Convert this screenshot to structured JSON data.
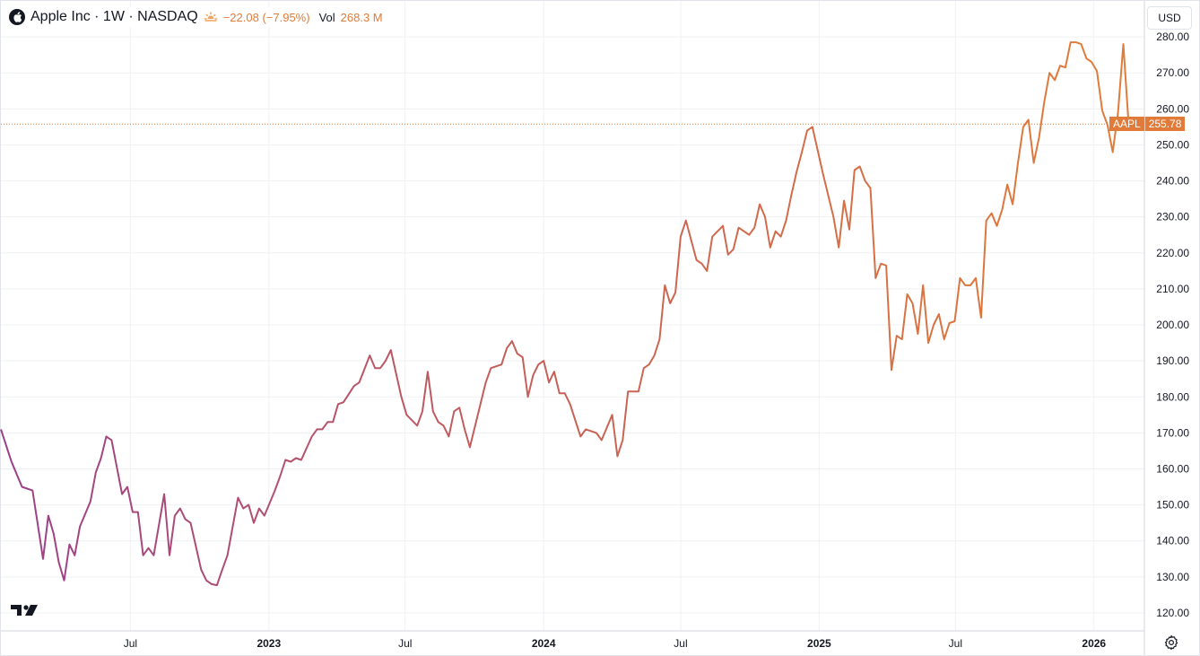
{
  "legend": {
    "title": "Apple Inc · 1W · NASDAQ",
    "change": "−22.08 (−7.95%)",
    "vol_label": "Vol",
    "vol_value": "268.3 M"
  },
  "currency": "USD",
  "price_tag": {
    "symbol": "AAPL",
    "value": "255.78"
  },
  "icons": {
    "logo": "apple-logo-icon",
    "session": "sun-icon",
    "brand": "tradingview-logo-icon",
    "settings": "gear-icon"
  },
  "colors": {
    "line_start": "#9b3f8a",
    "line_mid": "#c45d5a",
    "line_end": "#e07b39",
    "price_line": "#e07b39"
  },
  "chart_data": {
    "type": "line",
    "symbol": "AAPL",
    "interval": "1W",
    "ylim": [
      115,
      290
    ],
    "y_ticks": [
      "120.00",
      "130.00",
      "140.00",
      "150.00",
      "160.00",
      "170.00",
      "180.00",
      "190.00",
      "200.00",
      "210.00",
      "220.00",
      "230.00",
      "240.00",
      "250.00",
      "260.00",
      "270.00",
      "280.00"
    ],
    "x_ticks": [
      {
        "label": "Jul",
        "x": "2022-07-01",
        "year": false
      },
      {
        "label": "2023",
        "x": "2023-01-01",
        "year": true
      },
      {
        "label": "Jul",
        "x": "2023-07-01",
        "year": false
      },
      {
        "label": "2024",
        "x": "2024-01-01",
        "year": true
      },
      {
        "label": "Jul",
        "x": "2024-07-01",
        "year": false
      },
      {
        "label": "2025",
        "x": "2025-01-01",
        "year": true
      },
      {
        "label": "Jul",
        "x": "2025-07-01",
        "year": false
      },
      {
        "label": "2026",
        "x": "2026-01-01",
        "year": true
      }
    ],
    "x_range": [
      "2022-01-10",
      "2026-03-09"
    ],
    "last_price": 255.78,
    "series": [
      {
        "values": [
          [
            "2022-01-10",
            171
          ],
          [
            "2022-01-24",
            162
          ],
          [
            "2022-02-07",
            155
          ],
          [
            "2022-02-21",
            154
          ],
          [
            "2022-03-07",
            135
          ],
          [
            "2022-03-14",
            147
          ],
          [
            "2022-03-21",
            142
          ],
          [
            "2022-03-28",
            134
          ],
          [
            "2022-04-04",
            129
          ],
          [
            "2022-04-11",
            139
          ],
          [
            "2022-04-18",
            136
          ],
          [
            "2022-04-25",
            144
          ],
          [
            "2022-05-09",
            151
          ],
          [
            "2022-05-16",
            159
          ],
          [
            "2022-05-23",
            163
          ],
          [
            "2022-05-30",
            169
          ],
          [
            "2022-06-06",
            168
          ],
          [
            "2022-06-20",
            153
          ],
          [
            "2022-06-27",
            155
          ],
          [
            "2022-07-04",
            148
          ],
          [
            "2022-07-11",
            148
          ],
          [
            "2022-07-18",
            136
          ],
          [
            "2022-07-25",
            138
          ],
          [
            "2022-08-01",
            136
          ],
          [
            "2022-08-15",
            153
          ],
          [
            "2022-08-22",
            136
          ],
          [
            "2022-08-29",
            147
          ],
          [
            "2022-09-05",
            149
          ],
          [
            "2022-09-12",
            146
          ],
          [
            "2022-09-19",
            145
          ],
          [
            "2022-10-03",
            132
          ],
          [
            "2022-10-10",
            129
          ],
          [
            "2022-10-17",
            128
          ],
          [
            "2022-10-24",
            127.7
          ],
          [
            "2022-10-31",
            132
          ],
          [
            "2022-11-07",
            136
          ],
          [
            "2022-11-21",
            152
          ],
          [
            "2022-11-28",
            149
          ],
          [
            "2022-12-05",
            150
          ],
          [
            "2022-12-12",
            145
          ],
          [
            "2022-12-19",
            149
          ],
          [
            "2022-12-26",
            147
          ],
          [
            "2023-01-09",
            154
          ],
          [
            "2023-01-16",
            158
          ],
          [
            "2023-01-23",
            162.5
          ],
          [
            "2023-01-30",
            162
          ],
          [
            "2023-02-06",
            163
          ],
          [
            "2023-02-13",
            162.5
          ],
          [
            "2023-02-27",
            169
          ],
          [
            "2023-03-06",
            171
          ],
          [
            "2023-03-13",
            171
          ],
          [
            "2023-03-20",
            173
          ],
          [
            "2023-03-27",
            173
          ],
          [
            "2023-04-03",
            178
          ],
          [
            "2023-04-10",
            178.5
          ],
          [
            "2023-04-24",
            183
          ],
          [
            "2023-05-01",
            184
          ],
          [
            "2023-05-15",
            191.5
          ],
          [
            "2023-05-22",
            188
          ],
          [
            "2023-05-29",
            188
          ],
          [
            "2023-06-05",
            190
          ],
          [
            "2023-06-12",
            193
          ],
          [
            "2023-06-26",
            180
          ],
          [
            "2023-07-03",
            175
          ],
          [
            "2023-07-17",
            172
          ],
          [
            "2023-07-24",
            176
          ],
          [
            "2023-07-31",
            187
          ],
          [
            "2023-08-07",
            176
          ],
          [
            "2023-08-14",
            173
          ],
          [
            "2023-08-21",
            172
          ],
          [
            "2023-08-28",
            169
          ],
          [
            "2023-09-04",
            176
          ],
          [
            "2023-09-11",
            177
          ],
          [
            "2023-09-18",
            171
          ],
          [
            "2023-09-25",
            166
          ],
          [
            "2023-10-09",
            178
          ],
          [
            "2023-10-16",
            184
          ],
          [
            "2023-10-23",
            188
          ],
          [
            "2023-11-06",
            189
          ],
          [
            "2023-11-13",
            193.5
          ],
          [
            "2023-11-20",
            195.5
          ],
          [
            "2023-11-27",
            192
          ],
          [
            "2023-12-04",
            191
          ],
          [
            "2023-12-11",
            180
          ],
          [
            "2023-12-18",
            186
          ],
          [
            "2023-12-25",
            189
          ],
          [
            "2024-01-01",
            190
          ],
          [
            "2024-01-08",
            184
          ],
          [
            "2024-01-15",
            187
          ],
          [
            "2024-01-22",
            181
          ],
          [
            "2024-01-29",
            181
          ],
          [
            "2024-02-05",
            178
          ],
          [
            "2024-02-19",
            169
          ],
          [
            "2024-02-26",
            171
          ],
          [
            "2024-03-04",
            170.5
          ],
          [
            "2024-03-11",
            170
          ],
          [
            "2024-03-18",
            168
          ],
          [
            "2024-04-01",
            175
          ],
          [
            "2024-04-08",
            163.5
          ],
          [
            "2024-04-15",
            168
          ],
          [
            "2024-04-22",
            181.5
          ],
          [
            "2024-05-06",
            181.5
          ],
          [
            "2024-05-13",
            188
          ],
          [
            "2024-05-20",
            189
          ],
          [
            "2024-05-27",
            191.5
          ],
          [
            "2024-06-03",
            196
          ],
          [
            "2024-06-10",
            211
          ],
          [
            "2024-06-17",
            206
          ],
          [
            "2024-06-24",
            209
          ],
          [
            "2024-07-01",
            224.5
          ],
          [
            "2024-07-08",
            229
          ],
          [
            "2024-07-15",
            223.5
          ],
          [
            "2024-07-22",
            218
          ],
          [
            "2024-07-29",
            217
          ],
          [
            "2024-08-05",
            215
          ],
          [
            "2024-08-12",
            224.5
          ],
          [
            "2024-08-19",
            226
          ],
          [
            "2024-08-26",
            227.5
          ],
          [
            "2024-09-02",
            219.5
          ],
          [
            "2024-09-09",
            221
          ],
          [
            "2024-09-16",
            227
          ],
          [
            "2024-09-23",
            226
          ],
          [
            "2024-09-30",
            225
          ],
          [
            "2024-10-07",
            227
          ],
          [
            "2024-10-14",
            233.5
          ],
          [
            "2024-10-21",
            230
          ],
          [
            "2024-10-28",
            221.5
          ],
          [
            "2024-11-04",
            226
          ],
          [
            "2024-11-11",
            224.5
          ],
          [
            "2024-11-18",
            229
          ],
          [
            "2024-11-25",
            236
          ],
          [
            "2024-12-02",
            242.5
          ],
          [
            "2024-12-09",
            248
          ],
          [
            "2024-12-16",
            254
          ],
          [
            "2024-12-23",
            255
          ],
          [
            "2025-01-06",
            242
          ],
          [
            "2025-01-20",
            230
          ],
          [
            "2025-01-27",
            221.5
          ],
          [
            "2025-02-03",
            234.5
          ],
          [
            "2025-02-10",
            226.5
          ],
          [
            "2025-02-17",
            243
          ],
          [
            "2025-02-24",
            244
          ],
          [
            "2025-03-03",
            240
          ],
          [
            "2025-03-10",
            238
          ],
          [
            "2025-03-17",
            213
          ],
          [
            "2025-03-24",
            217
          ],
          [
            "2025-03-31",
            216.5
          ],
          [
            "2025-04-07",
            187.5
          ],
          [
            "2025-04-14",
            197
          ],
          [
            "2025-04-21",
            196
          ],
          [
            "2025-04-28",
            208.5
          ],
          [
            "2025-05-05",
            206
          ],
          [
            "2025-05-12",
            197.5
          ],
          [
            "2025-05-19",
            211
          ],
          [
            "2025-05-26",
            195
          ],
          [
            "2025-06-02",
            200
          ],
          [
            "2025-06-09",
            203
          ],
          [
            "2025-06-16",
            196
          ],
          [
            "2025-06-23",
            200.5
          ],
          [
            "2025-06-30",
            201
          ],
          [
            "2025-07-07",
            213
          ],
          [
            "2025-07-14",
            211
          ],
          [
            "2025-07-21",
            211
          ],
          [
            "2025-07-28",
            213
          ],
          [
            "2025-08-04",
            202
          ],
          [
            "2025-08-11",
            229
          ],
          [
            "2025-08-18",
            231
          ],
          [
            "2025-08-25",
            227.5
          ],
          [
            "2025-09-01",
            232
          ],
          [
            "2025-09-08",
            239
          ],
          [
            "2025-09-15",
            233.5
          ],
          [
            "2025-09-22",
            245
          ],
          [
            "2025-09-29",
            255
          ],
          [
            "2025-10-06",
            257
          ],
          [
            "2025-10-13",
            245
          ],
          [
            "2025-10-20",
            252
          ],
          [
            "2025-10-27",
            262
          ],
          [
            "2025-11-03",
            270
          ],
          [
            "2025-11-10",
            268
          ],
          [
            "2025-11-17",
            272
          ],
          [
            "2025-11-24",
            271.5
          ],
          [
            "2025-12-01",
            278.5
          ],
          [
            "2025-12-08",
            278.5
          ],
          [
            "2025-12-15",
            278
          ],
          [
            "2025-12-22",
            274
          ],
          [
            "2025-12-29",
            273
          ],
          [
            "2026-01-05",
            270.5
          ],
          [
            "2026-01-12",
            259.5
          ],
          [
            "2026-01-19",
            255.5
          ],
          [
            "2026-01-26",
            248
          ],
          [
            "2026-02-02",
            259
          ],
          [
            "2026-02-09",
            278
          ],
          [
            "2026-02-16",
            255.78
          ]
        ]
      }
    ]
  }
}
